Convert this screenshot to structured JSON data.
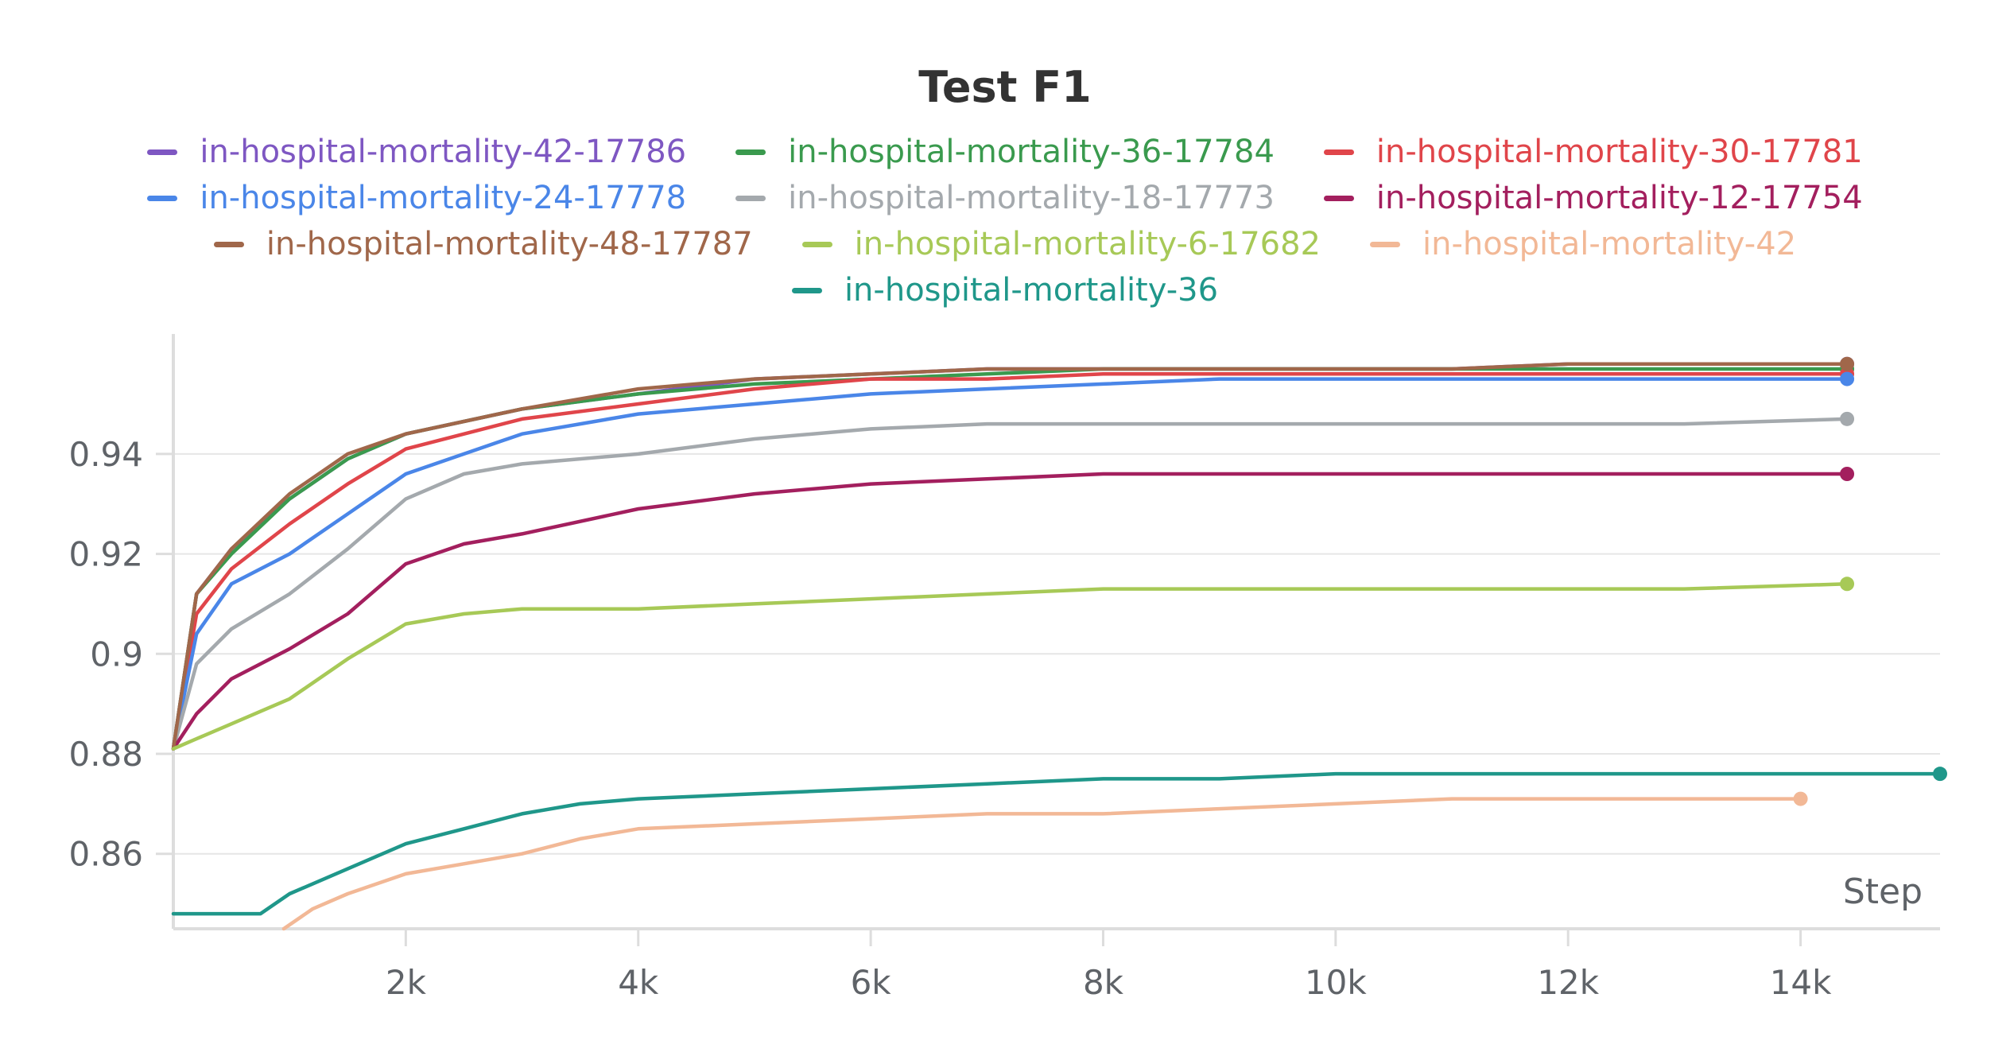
{
  "chart_data": {
    "type": "line",
    "title": "Test F1",
    "xlabel": "Step",
    "ylabel": "",
    "xlim": [
      0,
      15200
    ],
    "ylim": [
      0.845,
      0.964
    ],
    "x_ticks": [
      {
        "value": 2000,
        "label": "2k"
      },
      {
        "value": 4000,
        "label": "4k"
      },
      {
        "value": 6000,
        "label": "6k"
      },
      {
        "value": 8000,
        "label": "8k"
      },
      {
        "value": 10000,
        "label": "10k"
      },
      {
        "value": 12000,
        "label": "12k"
      },
      {
        "value": 14000,
        "label": "14k"
      }
    ],
    "y_ticks": [
      {
        "value": 0.86,
        "label": "0.86"
      },
      {
        "value": 0.88,
        "label": "0.88"
      },
      {
        "value": 0.9,
        "label": "0.9"
      },
      {
        "value": 0.92,
        "label": "0.92"
      },
      {
        "value": 0.94,
        "label": "0.94"
      }
    ],
    "grid": true,
    "legend_position": "top",
    "series": [
      {
        "name": "in-hospital-mortality-42-17786",
        "color": "#7e57c2",
        "x": [
          0,
          200,
          500,
          1000,
          1500,
          2000,
          3000,
          4000,
          5000,
          6000,
          7000,
          8000,
          9000,
          10000,
          11000,
          12000,
          13000,
          14400
        ],
        "y": [
          0.881,
          0.912,
          0.921,
          0.931,
          0.939,
          0.944,
          0.949,
          0.952,
          0.955,
          0.956,
          0.957,
          0.957,
          0.957,
          0.957,
          0.957,
          0.958,
          0.958,
          0.958
        ]
      },
      {
        "name": "in-hospital-mortality-36-17784",
        "color": "#3a9a4e",
        "x": [
          0,
          200,
          500,
          1000,
          1500,
          2000,
          3000,
          4000,
          5000,
          6000,
          7000,
          8000,
          9000,
          10000,
          11000,
          12000,
          13000,
          14400
        ],
        "y": [
          0.881,
          0.912,
          0.92,
          0.931,
          0.939,
          0.944,
          0.949,
          0.952,
          0.954,
          0.955,
          0.956,
          0.957,
          0.957,
          0.957,
          0.957,
          0.957,
          0.957,
          0.957
        ]
      },
      {
        "name": "in-hospital-mortality-30-17781",
        "color": "#e0454a",
        "x": [
          0,
          200,
          500,
          1000,
          1500,
          2000,
          3000,
          4000,
          5000,
          6000,
          7000,
          8000,
          9000,
          10000,
          11000,
          12000,
          13000,
          14400
        ],
        "y": [
          0.881,
          0.908,
          0.917,
          0.926,
          0.934,
          0.941,
          0.947,
          0.95,
          0.953,
          0.955,
          0.955,
          0.956,
          0.956,
          0.956,
          0.956,
          0.956,
          0.956,
          0.956
        ]
      },
      {
        "name": "in-hospital-mortality-24-17778",
        "color": "#4a86e8",
        "x": [
          0,
          200,
          500,
          1000,
          1500,
          2000,
          3000,
          4000,
          5000,
          6000,
          7000,
          8000,
          9000,
          10000,
          11000,
          12000,
          13000,
          14400
        ],
        "y": [
          0.881,
          0.904,
          0.914,
          0.92,
          0.928,
          0.936,
          0.944,
          0.948,
          0.95,
          0.952,
          0.953,
          0.954,
          0.955,
          0.955,
          0.955,
          0.955,
          0.955,
          0.955
        ]
      },
      {
        "name": "in-hospital-mortality-18-17773",
        "color": "#a4a9ad",
        "x": [
          0,
          200,
          500,
          1000,
          1500,
          2000,
          2500,
          3000,
          4000,
          5000,
          6000,
          7000,
          8000,
          9000,
          10000,
          11000,
          12000,
          13000,
          14400
        ],
        "y": [
          0.881,
          0.898,
          0.905,
          0.912,
          0.921,
          0.931,
          0.936,
          0.938,
          0.94,
          0.943,
          0.945,
          0.946,
          0.946,
          0.946,
          0.946,
          0.946,
          0.946,
          0.946,
          0.947
        ]
      },
      {
        "name": "in-hospital-mortality-12-17754",
        "color": "#a31f5e",
        "x": [
          0,
          200,
          500,
          1000,
          1500,
          2000,
          2500,
          3000,
          4000,
          5000,
          6000,
          7000,
          8000,
          9000,
          10000,
          11000,
          12000,
          13000,
          14400
        ],
        "y": [
          0.881,
          0.888,
          0.895,
          0.901,
          0.908,
          0.918,
          0.922,
          0.924,
          0.929,
          0.932,
          0.934,
          0.935,
          0.936,
          0.936,
          0.936,
          0.936,
          0.936,
          0.936,
          0.936
        ]
      },
      {
        "name": "in-hospital-mortality-48-17787",
        "color": "#a0674a",
        "x": [
          0,
          200,
          500,
          1000,
          1500,
          2000,
          3000,
          4000,
          5000,
          6000,
          7000,
          8000,
          9000,
          10000,
          11000,
          12000,
          13000,
          14400
        ],
        "y": [
          0.881,
          0.912,
          0.921,
          0.932,
          0.94,
          0.944,
          0.949,
          0.953,
          0.955,
          0.956,
          0.957,
          0.957,
          0.957,
          0.957,
          0.957,
          0.958,
          0.958,
          0.958
        ]
      },
      {
        "name": "in-hospital-mortality-6-17682",
        "color": "#a7c957",
        "x": [
          0,
          200,
          500,
          1000,
          1500,
          2000,
          2500,
          3000,
          4000,
          5000,
          6000,
          7000,
          8000,
          9000,
          10000,
          11000,
          12000,
          13000,
          14400
        ],
        "y": [
          0.881,
          0.883,
          0.886,
          0.891,
          0.899,
          0.906,
          0.908,
          0.909,
          0.909,
          0.91,
          0.911,
          0.912,
          0.913,
          0.913,
          0.913,
          0.913,
          0.913,
          0.913,
          0.914
        ]
      },
      {
        "name": "in-hospital-mortality-42",
        "color": "#f2b896",
        "x": [
          950,
          1200,
          1500,
          2000,
          2500,
          3000,
          3500,
          4000,
          5000,
          6000,
          7000,
          8000,
          9000,
          10000,
          11000,
          12000,
          13000,
          14000
        ],
        "y": [
          0.845,
          0.849,
          0.852,
          0.856,
          0.858,
          0.86,
          0.863,
          0.865,
          0.866,
          0.867,
          0.868,
          0.868,
          0.869,
          0.87,
          0.871,
          0.871,
          0.871,
          0.871
        ]
      },
      {
        "name": "in-hospital-mortality-36",
        "color": "#1f978a",
        "x": [
          0,
          750,
          1000,
          1500,
          2000,
          2500,
          3000,
          3500,
          4000,
          5000,
          6000,
          7000,
          8000,
          9000,
          10000,
          11000,
          12000,
          13000,
          14000,
          15200
        ],
        "y": [
          0.848,
          0.848,
          0.852,
          0.857,
          0.862,
          0.865,
          0.868,
          0.87,
          0.871,
          0.872,
          0.873,
          0.874,
          0.875,
          0.875,
          0.876,
          0.876,
          0.876,
          0.876,
          0.876,
          0.876
        ]
      }
    ]
  }
}
